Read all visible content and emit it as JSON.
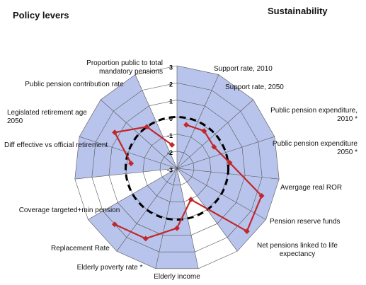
{
  "chart_data": {
    "type": "radar",
    "left_title": "Policy levers",
    "right_title": "Sustainability",
    "categories": [
      "Support rate, 2010",
      "Support rate, 2050",
      "Public pension expenditure, 2010 *",
      "Public pension expenditure 2050 *",
      "Avergage real ROR",
      "Pension reserve funds",
      "Net pensions linked to life expectancy",
      "Elderly income",
      "Elderly poverty rate *",
      "Replacement Rate",
      "Coverage targeted+min pension",
      "Diff effective vs official retirement",
      "Legislated retirement age 2050",
      "Public pension contribution rate",
      "Proportion public to total mandatory pensions"
    ],
    "series": [
      {
        "color": "#c0282b",
        "values": [
          -0.4,
          -0.3,
          -0.5,
          0.1,
          2.2,
          2.5,
          -1.0,
          0.5,
          1.5,
          1.9,
          null,
          -0.3,
          1.2,
          0,
          -1.6
        ]
      }
    ],
    "sector_colors": [
      "#b9c4ec",
      "#b9c4ec",
      "#b9c4ec",
      "#b9c4ec",
      "#b9c4ec",
      "#b9c4ec",
      "#ffffff",
      "#b9c4ec",
      "#b9c4ec",
      "#b9c4ec",
      "#ffffff",
      "#b9c4ec",
      "#b9c4ec",
      "#b9c4ec",
      "#ffffff"
    ],
    "rlim": [
      -3,
      3
    ],
    "rticks": [
      3,
      2,
      1,
      0,
      -1,
      -2,
      -3
    ],
    "reference_value": 0
  }
}
